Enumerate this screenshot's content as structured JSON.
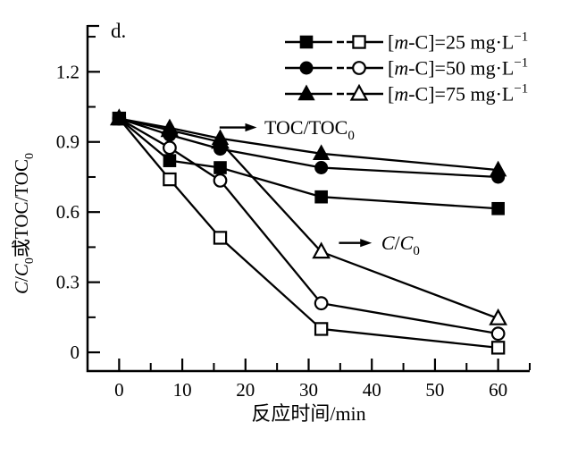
{
  "figure": {
    "panel_label": "d.",
    "background": "#ffffff",
    "ink": "#000000"
  },
  "chart_data": {
    "type": "line",
    "title": "",
    "xlabel": "反应时间/min",
    "ylabel": "C/C₀或TOC/TOC₀",
    "xlim": [
      -5,
      65
    ],
    "ylim": [
      -0.08,
      1.4
    ],
    "grid": false,
    "x_major_ticks": [
      0,
      10,
      20,
      30,
      40,
      50,
      60
    ],
    "x_major_tick_labels": [
      "0",
      "10",
      "20",
      "30",
      "40",
      "50",
      "60"
    ],
    "x_minor_ticks": [
      5,
      15,
      25,
      35,
      45,
      55,
      65
    ],
    "y_major_ticks": [
      0,
      0.3,
      0.6,
      0.9,
      1.2
    ],
    "y_major_tick_labels": [
      "0",
      "0.3",
      "0.6",
      "0.9",
      "1.2"
    ],
    "y_minor_ticks": [
      0.15,
      0.45,
      0.75,
      1.05,
      1.35
    ],
    "x": [
      0,
      8,
      16,
      32,
      60
    ],
    "series": [
      {
        "id": "c-75",
        "name": "C/C₀, [m-C]=75 mg·L⁻¹",
        "group": "C/C₀",
        "conc_mg_L": 75,
        "marker": "triangle",
        "fill": "open",
        "values": [
          1.0,
          0.95,
          0.9,
          0.43,
          0.145
        ]
      },
      {
        "id": "c-50",
        "name": "C/C₀, [m-C]=50 mg·L⁻¹",
        "group": "C/C₀",
        "conc_mg_L": 50,
        "marker": "circle",
        "fill": "open",
        "values": [
          1.0,
          0.875,
          0.735,
          0.21,
          0.08
        ]
      },
      {
        "id": "c-25",
        "name": "C/C₀, [m-C]=25 mg·L⁻¹",
        "group": "C/C₀",
        "conc_mg_L": 25,
        "marker": "square",
        "fill": "open",
        "values": [
          1.0,
          0.74,
          0.49,
          0.1,
          0.02
        ]
      },
      {
        "id": "toc-25",
        "name": "TOC/TOC₀, [m-C]=25 mg·L⁻¹",
        "group": "TOC/TOC₀",
        "conc_mg_L": 25,
        "marker": "square",
        "fill": "solid",
        "values": [
          1.0,
          0.82,
          0.79,
          0.665,
          0.615
        ]
      },
      {
        "id": "toc-50",
        "name": "TOC/TOC₀, [m-C]=50 mg·L⁻¹",
        "group": "TOC/TOC₀",
        "conc_mg_L": 50,
        "marker": "circle",
        "fill": "solid",
        "values": [
          1.0,
          0.93,
          0.87,
          0.79,
          0.75
        ]
      },
      {
        "id": "toc-75",
        "name": "TOC/TOC₀, [m-C]=75 mg·L⁻¹",
        "group": "TOC/TOC₀",
        "conc_mg_L": 75,
        "marker": "triangle",
        "fill": "solid",
        "values": [
          1.0,
          0.96,
          0.915,
          0.85,
          0.78
        ]
      }
    ],
    "annotations": [
      {
        "id": "toc-group",
        "arrow": {
          "x_from": 15.9,
          "x_to": 21.8,
          "y": 0.962
        },
        "text_x": 23.0,
        "text_y": 0.962,
        "parts": [
          {
            "t": "TOC/TOC"
          },
          {
            "t": "0",
            "sub": true
          }
        ]
      },
      {
        "id": "c-group",
        "arrow": {
          "x_from": 34.8,
          "x_to": 40.0,
          "y": 0.468
        },
        "text_x": 41.5,
        "text_y": 0.468,
        "parts": [
          {
            "t": "C",
            "it": true
          },
          {
            "t": "/"
          },
          {
            "t": "C",
            "it": true
          },
          {
            "t": "0",
            "sub": true
          }
        ]
      }
    ],
    "ylabel_parts": [
      {
        "t": "C",
        "it": true
      },
      {
        "t": "/"
      },
      {
        "t": "C",
        "it": true
      },
      {
        "t": "0",
        "sub": true
      },
      {
        "t": "或TOC/TOC"
      },
      {
        "t": "0",
        "sub": true
      }
    ],
    "legend": {
      "position": "top-right",
      "entries": [
        {
          "marker": "square",
          "conc_mg_L": 25,
          "parts": [
            {
              "t": "["
            },
            {
              "t": "m",
              "it": true
            },
            {
              "t": "-C]=25 mg·L"
            },
            {
              "t": "−1",
              "sup": true
            }
          ]
        },
        {
          "marker": "circle",
          "conc_mg_L": 50,
          "parts": [
            {
              "t": "["
            },
            {
              "t": "m",
              "it": true
            },
            {
              "t": "-C]=50 mg·L"
            },
            {
              "t": "−1",
              "sup": true
            }
          ]
        },
        {
          "marker": "triangle",
          "conc_mg_L": 75,
          "parts": [
            {
              "t": "["
            },
            {
              "t": "m",
              "it": true
            },
            {
              "t": "-C]=75 mg·L"
            },
            {
              "t": "−1",
              "sup": true
            }
          ]
        }
      ]
    }
  }
}
